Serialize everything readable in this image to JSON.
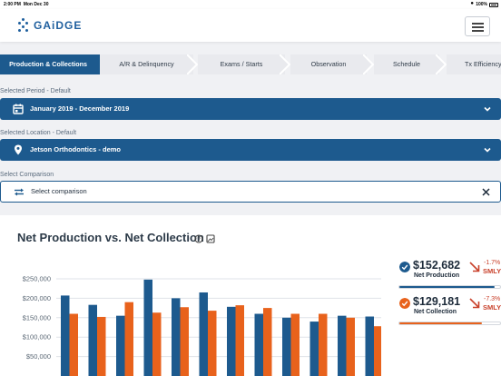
{
  "status_bar": {
    "time": "2:00 PM",
    "date": "Mon Dec 30",
    "battery": "100%"
  },
  "header": {
    "logo_text": "GAiDGE",
    "brand_color": "#1f5f9e"
  },
  "tabs": [
    {
      "label": "Production & Collections",
      "active": true
    },
    {
      "label": "A/R & Delinquency",
      "active": false
    },
    {
      "label": "Exams / Starts",
      "active": false
    },
    {
      "label": "Observation",
      "active": false
    },
    {
      "label": "Schedule",
      "active": false
    },
    {
      "label": "Tx Efficiency",
      "active": false
    }
  ],
  "filters": {
    "period_label": "Selected Period - Default",
    "period_value": "January 2019 - December 2019",
    "location_label": "Selected Location - Default",
    "location_value": "Jetson Orthodontics - demo",
    "comparison_label": "Select Comparison",
    "comparison_value": "Select comparison"
  },
  "card": {
    "title": "Net Production vs. Net Collection"
  },
  "summary": [
    {
      "amount": "$152,682",
      "name": "Net Production",
      "change": "-1.7%",
      "compare": "SMLY",
      "color": "#1d5a8e",
      "progress": 0.95
    },
    {
      "amount": "$129,181",
      "name": "Net Collection",
      "change": "-7.3%",
      "compare": "SMLY",
      "color": "#e8621c",
      "progress": 0.82
    }
  ],
  "chart_data": {
    "type": "bar",
    "y_tick_labels": [
      "$250,000",
      "$200,000",
      "$150,000",
      "$100,000",
      "$50,000"
    ],
    "ylim": [
      0,
      250000
    ],
    "series": [
      {
        "color": "#1d5a8e",
        "values": [
          207000,
          183000,
          155000,
          248000,
          200000,
          215000,
          178000,
          160000,
          150000,
          140000,
          155000,
          153000
        ]
      },
      {
        "color": "#e8621c",
        "values": [
          160000,
          152000,
          190000,
          163000,
          177000,
          168000,
          182000,
          175000,
          160000,
          160000,
          150000,
          128000
        ]
      }
    ]
  }
}
